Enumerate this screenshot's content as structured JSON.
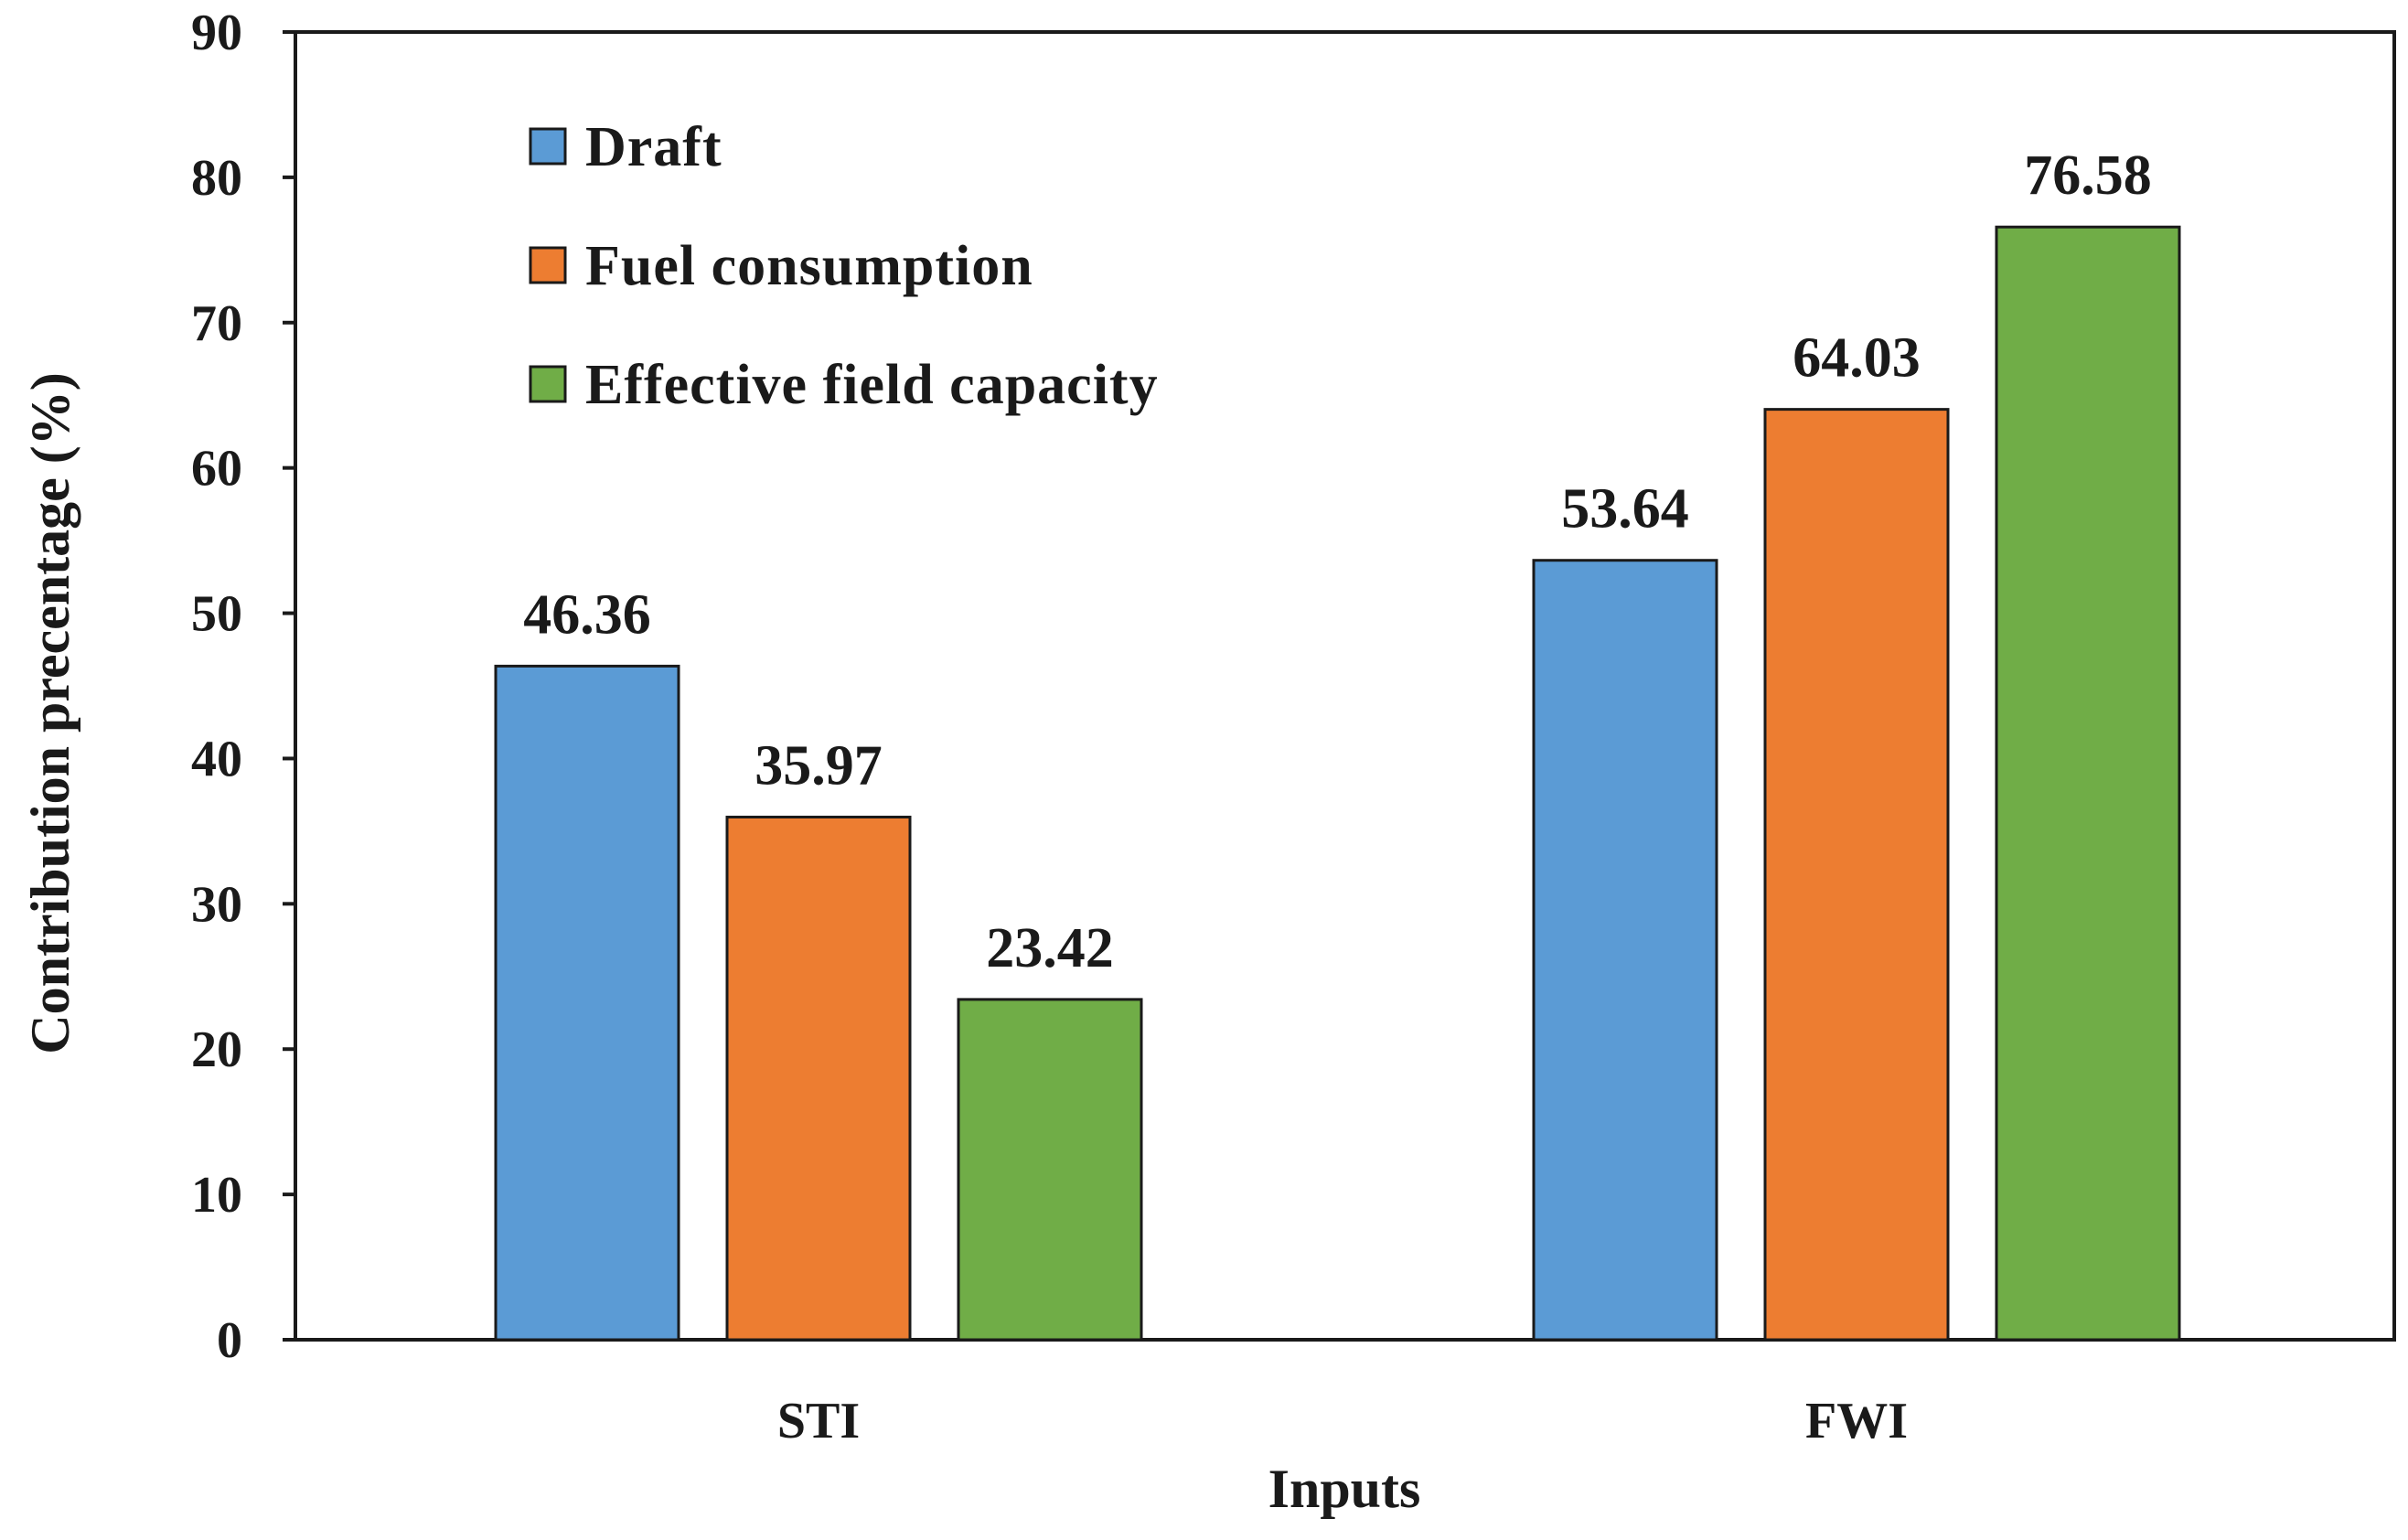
{
  "chart_data": {
    "type": "bar",
    "title": "",
    "xlabel": "Inputs",
    "ylabel": "Contribution  precentage  (%)",
    "categories": [
      "STI",
      "FWI"
    ],
    "series": [
      {
        "name": "Draft",
        "color": "#5B9BD5",
        "values": [
          46.36,
          53.64
        ],
        "labels": [
          "46.36",
          "53.64"
        ]
      },
      {
        "name": "Fuel consumption",
        "color": "#ED7D31",
        "values": [
          35.97,
          64.03
        ],
        "labels": [
          "35.97",
          "64.03"
        ]
      },
      {
        "name": "Effective field capacity",
        "color": "#70AD47",
        "values": [
          23.42,
          76.58
        ],
        "labels": [
          "23.42",
          "76.58"
        ]
      }
    ],
    "ylim": [
      0,
      90
    ],
    "yticks": [
      0,
      10,
      20,
      30,
      40,
      50,
      60,
      70,
      80,
      90
    ],
    "ytick_labels": [
      "0",
      "10",
      "20",
      "30",
      "40",
      "50",
      "60",
      "70",
      "80",
      "90"
    ],
    "grid": false,
    "legend_position": "top-left"
  }
}
